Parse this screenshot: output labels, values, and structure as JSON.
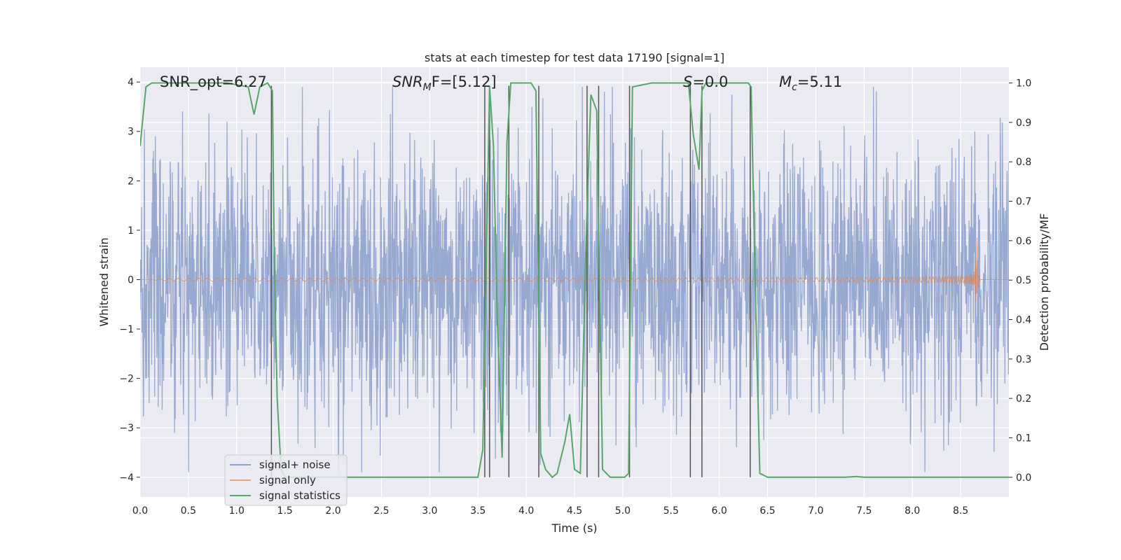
{
  "chart_data": {
    "type": "line",
    "title": "stats at each timestep for test data 17190 [signal=1]",
    "xlabel": "Time (s)",
    "ylabel_left": "Whitened strain",
    "ylabel_right": "Detection probability/MF",
    "xlim": [
      0.0,
      9.0
    ],
    "ylim_left": [
      -4.4,
      4.3
    ],
    "ylim_right": [
      -0.05,
      1.04
    ],
    "x_ticks": [
      "0.0",
      "0.5",
      "1.0",
      "1.5",
      "2.0",
      "2.5",
      "3.0",
      "3.5",
      "4.0",
      "4.5",
      "5.0",
      "5.5",
      "6.0",
      "6.5",
      "7.0",
      "7.5",
      "8.0",
      "8.5"
    ],
    "y_left_ticks": [
      4,
      3,
      2,
      1,
      0,
      -1,
      -2,
      -3,
      -4
    ],
    "y_left_tick_labels": [
      "4",
      "3",
      "2",
      "1",
      "0",
      "−1",
      "−2",
      "−3",
      "−4"
    ],
    "y_right_ticks": [
      "1.0",
      "0.9",
      "0.8",
      "0.7",
      "0.6",
      "0.5",
      "0.4",
      "0.3",
      "0.2",
      "0.1",
      "0.0"
    ],
    "grid": true,
    "legend_placement": "lower-left",
    "colors": {
      "noise": "#8ea2cc",
      "signal": "#dd8452",
      "stats": "#55a868",
      "vlines": "#555555",
      "background": "#eaeaf2",
      "grid": "#ffffff"
    },
    "annotations": {
      "snr_opt": "SNR_opt=6.27",
      "snr_mf_prefix": "SNR",
      "snr_mf_sub": "M",
      "snr_mf_suffix": "F=[5.12]",
      "s_label": "S",
      "s_value": "=0.0",
      "mc_label": "M",
      "mc_sub": "c",
      "mc_value": "=5.11"
    },
    "series": [
      {
        "name": "signal+ noise",
        "axis": "left",
        "description": "whitened strain noise, roughly Gaussian with amplitude up to about ±3.9",
        "amplitude_envelope": [
          -3.9,
          3.9
        ]
      },
      {
        "name": "signal only",
        "axis": "left",
        "description": "chirp waveform",
        "x_peak": 8.67,
        "y_peak_max": 0.85,
        "y_peak_min": -0.65,
        "x_end": 8.7
      },
      {
        "name": "signal statistics",
        "axis": "right",
        "x": [
          0.0,
          0.06,
          0.12,
          0.3,
          0.6,
          0.9,
          1.12,
          1.18,
          1.24,
          1.32,
          1.37,
          1.39,
          1.42,
          1.46,
          1.5,
          2.0,
          3.0,
          3.5,
          3.55,
          3.62,
          3.66,
          3.7,
          3.75,
          3.8,
          3.84,
          3.9,
          4.05,
          4.1,
          4.15,
          4.2,
          4.27,
          4.32,
          4.4,
          4.45,
          4.5,
          4.56,
          4.62,
          4.67,
          4.73,
          4.79,
          4.87,
          5.02,
          5.06,
          5.1,
          5.3,
          5.5,
          5.68,
          5.73,
          5.79,
          5.82,
          5.86,
          6.0,
          6.3,
          6.33,
          6.38,
          6.42,
          6.5,
          7.0,
          7.3,
          7.42,
          7.5,
          8.0,
          8.5,
          9.0
        ],
        "y": [
          0.84,
          0.99,
          1.0,
          1.0,
          1.0,
          1.0,
          0.99,
          0.92,
          0.99,
          1.0,
          0.98,
          0.55,
          0.2,
          0.02,
          0.0,
          0.0,
          0.0,
          0.0,
          0.07,
          0.99,
          0.84,
          0.4,
          0.05,
          0.85,
          1.0,
          1.0,
          1.0,
          0.98,
          0.06,
          0.02,
          0.0,
          0.01,
          0.09,
          0.16,
          0.02,
          0.01,
          0.6,
          0.97,
          0.93,
          0.02,
          0.0,
          0.0,
          0.01,
          0.99,
          1.0,
          1.0,
          1.0,
          0.87,
          0.78,
          0.98,
          1.0,
          1.0,
          1.0,
          0.99,
          0.4,
          0.01,
          0.0,
          0.0,
          0.0,
          0.002,
          0.0,
          0.0,
          0.0,
          0.0
        ]
      }
    ],
    "vertical_lines_x": [
      1.36,
      3.57,
      3.62,
      3.82,
      4.13,
      4.63,
      4.75,
      5.07,
      5.7,
      5.82,
      6.32
    ],
    "legend": [
      "signal+ noise",
      "signal only",
      "signal statistics"
    ]
  }
}
